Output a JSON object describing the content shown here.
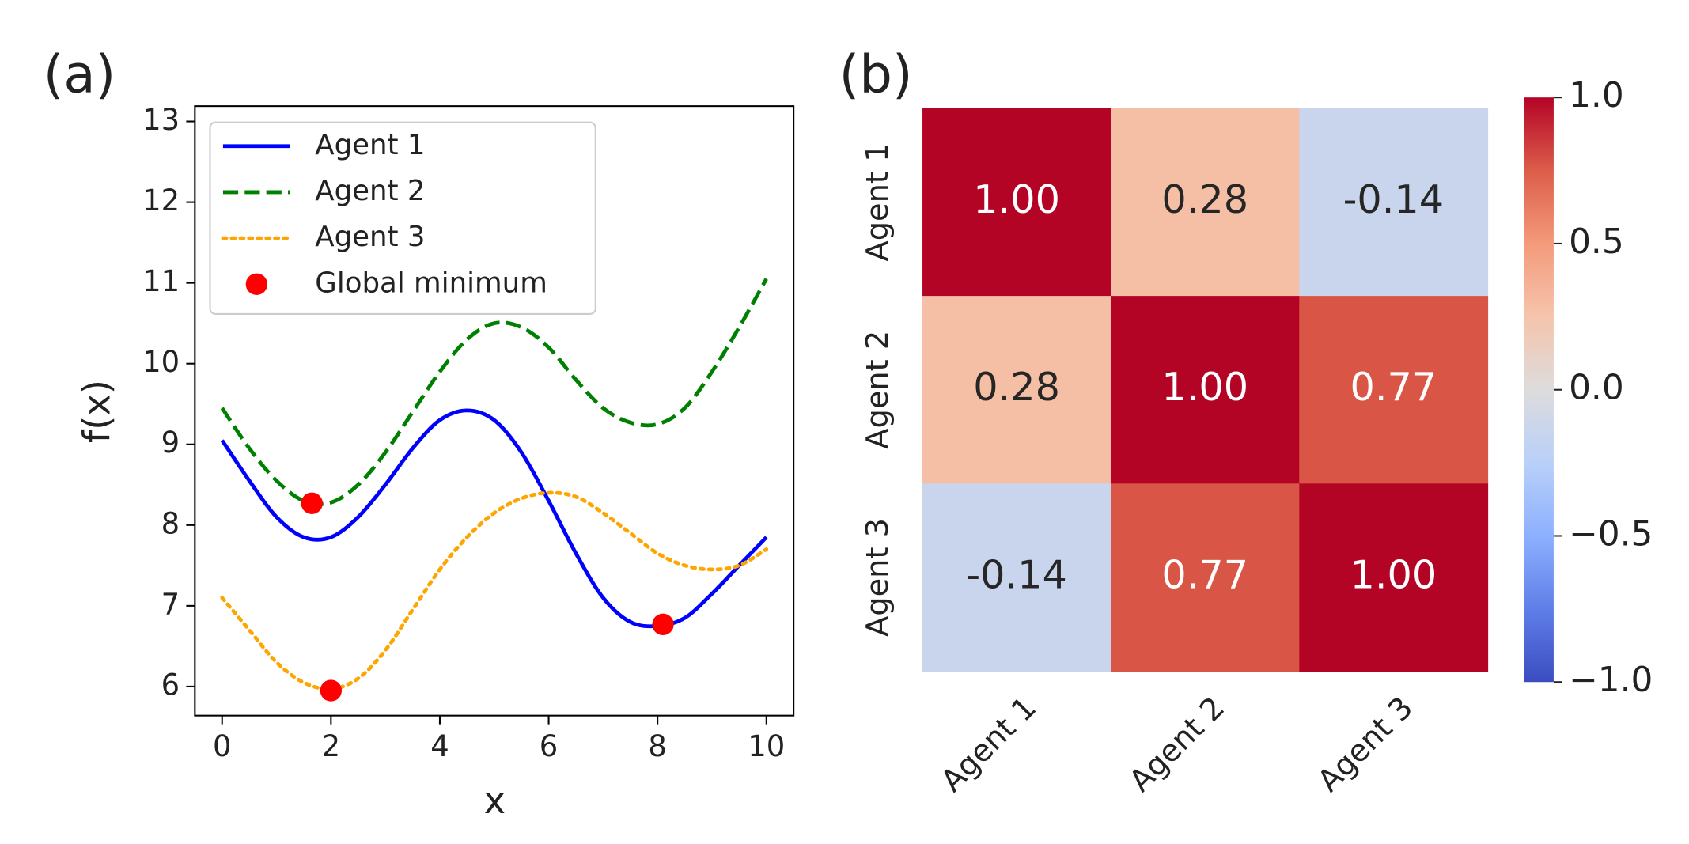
{
  "chart_data": [
    {
      "type": "line",
      "panel_label": "(a)",
      "xlabel": "x",
      "ylabel": "f(x)",
      "x": [
        0,
        0.5,
        1,
        1.5,
        2,
        2.5,
        3,
        3.5,
        4,
        4.5,
        5,
        5.5,
        6,
        6.5,
        7,
        7.5,
        8,
        8.5,
        9,
        9.5,
        10
      ],
      "series": [
        {
          "name": "Agent 1",
          "color": "#0000ff",
          "style": "solid",
          "values": [
            9.05,
            8.55,
            8.1,
            7.85,
            7.85,
            8.1,
            8.5,
            8.95,
            9.3,
            9.42,
            9.3,
            8.9,
            8.3,
            7.65,
            7.1,
            6.8,
            6.75,
            6.85,
            7.15,
            7.5,
            7.85
          ]
        },
        {
          "name": "Agent 2",
          "color": "#008000",
          "style": "dashed",
          "values": [
            9.45,
            8.95,
            8.55,
            8.3,
            8.28,
            8.5,
            8.9,
            9.4,
            9.9,
            10.3,
            10.5,
            10.45,
            10.2,
            9.8,
            9.45,
            9.27,
            9.25,
            9.45,
            9.9,
            10.45,
            11.05
          ]
        },
        {
          "name": "Agent 3",
          "color": "#ffa500",
          "style": "dotted",
          "values": [
            7.1,
            6.7,
            6.3,
            6.05,
            5.97,
            6.1,
            6.45,
            6.95,
            7.45,
            7.85,
            8.15,
            8.33,
            8.4,
            8.35,
            8.15,
            7.9,
            7.65,
            7.5,
            7.45,
            7.5,
            7.7
          ]
        },
        {
          "name": "Global minimum",
          "color": "#ff0000",
          "type": "scatter",
          "x": [
            1.65,
            2.0,
            8.1
          ],
          "values": [
            8.27,
            5.95,
            6.77
          ]
        }
      ],
      "xlim": [
        -0.5,
        10.5
      ],
      "xticks": [
        0,
        2,
        4,
        6,
        8,
        10
      ],
      "ylim": [
        5.64,
        13.19
      ],
      "yticks": [
        6,
        7,
        8,
        9,
        10,
        11,
        12,
        13
      ],
      "legend": "upper left",
      "grid": false
    },
    {
      "type": "heatmap",
      "panel_label": "(b)",
      "categories": [
        "Agent 1",
        "Agent 2",
        "Agent 3"
      ],
      "values": [
        [
          1.0,
          0.28,
          -0.14
        ],
        [
          0.28,
          1.0,
          0.77
        ],
        [
          -0.14,
          0.77,
          1.0
        ]
      ],
      "value_labels": [
        [
          "1.00",
          "0.28",
          "-0.14"
        ],
        [
          "0.28",
          "1.00",
          "0.77"
        ],
        [
          "-0.14",
          "0.77",
          "1.00"
        ]
      ],
      "vlim": [
        -1,
        1
      ],
      "cmap_colors": [
        "#3b4cc0",
        "#5f7fe8",
        "#8db0fe",
        "#b9d0f9",
        "#dddcdc",
        "#f5c4ac",
        "#f49a7b",
        "#dc5d4a",
        "#b40426"
      ],
      "colorbar_ticks": [
        {
          "value": 1,
          "label": "1.0"
        },
        0.5,
        {
          "value": 0,
          "label": "0.0"
        },
        {
          "value": -0.5,
          "label": "−0.5"
        },
        {
          "value": -1,
          "label": "−1.0"
        }
      ]
    }
  ]
}
